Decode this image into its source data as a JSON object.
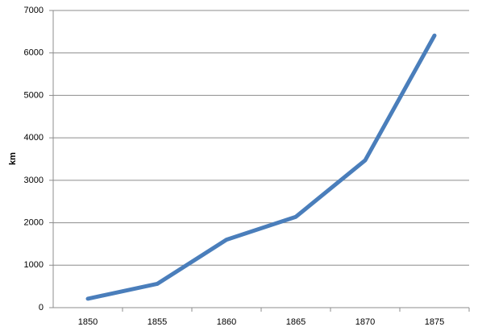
{
  "chart_data": {
    "type": "line",
    "y_label": "km",
    "categories": [
      "1850",
      "1855",
      "1860",
      "1865",
      "1870",
      "1875"
    ],
    "series": [
      {
        "name": "km",
        "color": "#4a7ebb",
        "values": [
          210,
          560,
          1600,
          2140,
          3470,
          6410
        ]
      }
    ],
    "ylim": [
      0,
      7000
    ],
    "yticks": [
      0,
      1000,
      2000,
      3000,
      4000,
      5000,
      6000,
      7000
    ],
    "grid": true
  }
}
